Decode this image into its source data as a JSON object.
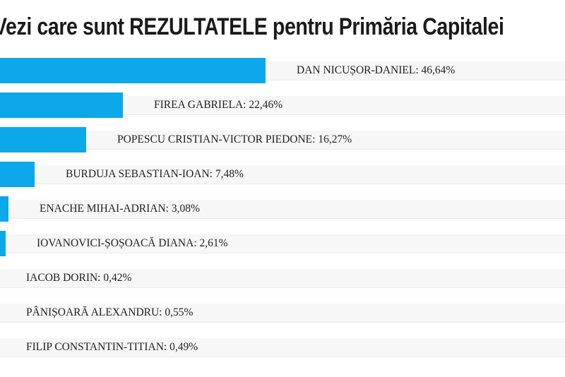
{
  "page_title": "Vezi care sunt REZULTATELE pentru Primăria Capitalei",
  "colors": {
    "bar": "#0da8e9",
    "track": "#f7f7f7",
    "track_border": "#ececec",
    "title_text": "#1b1b1b",
    "label_text": "#212121"
  },
  "chart_data": {
    "type": "bar",
    "orientation": "horizontal",
    "title": "Vezi care sunt REZULTATELE pentru Primăria Capitalei",
    "legend": false,
    "grid": false,
    "value_format": "comma-decimal percent",
    "categories": [
      "DAN NICUȘOR-DANIEL",
      "FIREA GABRIELA",
      "POPESCU CRISTIAN-VICTOR PIEDONE",
      "BURDUJA SEBASTIAN-IOAN",
      "ENACHE MIHAI-ADRIAN",
      "IOVANOVICI-ȘOȘOACĂ DIANA",
      "IACOB DORIN",
      "PÂNIȘOARĂ ALEXANDRU",
      "FILIP CONSTANTIN-TITIAN"
    ],
    "values": [
      46.64,
      22.46,
      16.27,
      7.48,
      3.08,
      2.61,
      0.42,
      0.55,
      0.49
    ],
    "results": [
      {
        "name": "DAN NICUȘOR-DANIEL",
        "pct": 46.64,
        "label": "DAN NICUȘOR-DANIEL: 46,64%"
      },
      {
        "name": "FIREA GABRIELA",
        "pct": 22.46,
        "label": "FIREA GABRIELA: 22,46%"
      },
      {
        "name": "POPESCU CRISTIAN-VICTOR PIEDONE",
        "pct": 16.27,
        "label": "POPESCU CRISTIAN-VICTOR PIEDONE: 16,27%"
      },
      {
        "name": "BURDUJA SEBASTIAN-IOAN",
        "pct": 7.48,
        "label": "BURDUJA SEBASTIAN-IOAN: 7,48%"
      },
      {
        "name": "ENACHE MIHAI-ADRIAN",
        "pct": 3.08,
        "label": "ENACHE MIHAI-ADRIAN: 3,08%"
      },
      {
        "name": "IOVANOVICI-ȘOȘOACĂ DIANA",
        "pct": 2.61,
        "label": "IOVANOVICI-ȘOȘOACĂ DIANA: 2,61%"
      },
      {
        "name": "IACOB DORIN",
        "pct": 0.42,
        "label": "IACOB DORIN: 0,42%"
      },
      {
        "name": "PÂNIȘOARĂ ALEXANDRU",
        "pct": 0.55,
        "label": "PÂNIȘOARĂ ALEXANDRU: 0,55%"
      },
      {
        "name": "FILIP CONSTANTIN-TITIAN",
        "pct": 0.49,
        "label": "FILIP CONSTANTIN-TITIAN: 0,49%"
      }
    ]
  }
}
